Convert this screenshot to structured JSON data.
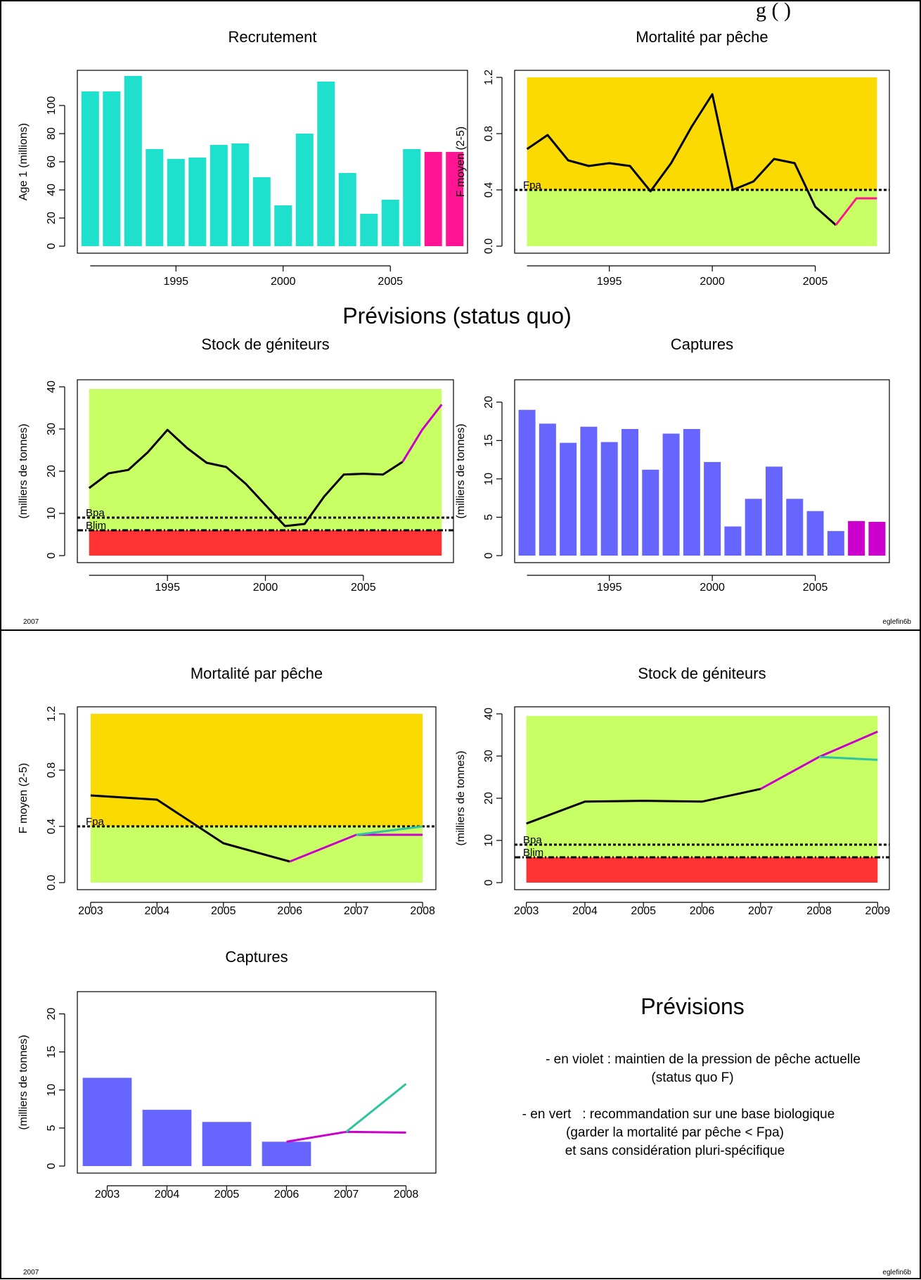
{
  "page": {
    "header_fragment": "g            (     )",
    "footer_top_left": "2007",
    "footer_top_right": "eglefin6b",
    "footer_bottom_left": "2007",
    "footer_bottom_right": "eglefin6b",
    "section_title": "Prévisions (status quo)",
    "legend_title": "Prévisions",
    "legend_lines": [
      "- en violet : maintien de la pression de pêche actuelle",
      "(status quo F)",
      "- en vert   : recommandation sur une base biologique",
      "(garder la mortalité par pêche < Fpa)",
      "et sans considération pluri-spécifique"
    ]
  },
  "colors": {
    "teal_bar": "#1EE0CC",
    "magenta_bar": "#FF1493",
    "blue_bar": "#6666FF",
    "violet": "#CC00CC",
    "pink_line": "#FF1493",
    "green_line": "#2EC4A0",
    "zone_orange": "#FADA00",
    "zone_green": "#C8FF64",
    "zone_red": "#FF3333"
  },
  "chart_data": [
    {
      "id": "recruitment",
      "type": "bar",
      "title": "Recrutement",
      "ylabel": "Age 1 (millions)",
      "ylim": [
        0,
        120
      ],
      "yticks": [
        0,
        20,
        40,
        60,
        80,
        100
      ],
      "xticks": [
        1995,
        2000,
        2005
      ],
      "x": [
        1991,
        1992,
        1993,
        1994,
        1995,
        1996,
        1997,
        1998,
        1999,
        2000,
        2001,
        2002,
        2003,
        2004,
        2005,
        2006,
        2007,
        2008
      ],
      "values": [
        110,
        110,
        121,
        69,
        62,
        63,
        72,
        73,
        49,
        29,
        80,
        117,
        52,
        23,
        33,
        69,
        67,
        67
      ],
      "highlight_from": 2007
    },
    {
      "id": "fishing-mortality",
      "type": "line",
      "title": "Mortalité par pêche",
      "ylabel": "F moyen (2-5)",
      "ylim": [
        0,
        1.2
      ],
      "yticks": [
        0.0,
        0.4,
        0.8,
        1.2
      ],
      "xticks": [
        1995,
        2000,
        2005
      ],
      "reference": {
        "label": "Fpa",
        "value": 0.4
      },
      "series": [
        {
          "x": [
            1991,
            1992,
            1993,
            1994,
            1995,
            1996,
            1997,
            1998,
            1999,
            2000,
            2001,
            2002,
            2003,
            2004,
            2005,
            2006
          ],
          "y": [
            0.69,
            0.79,
            0.61,
            0.57,
            0.59,
            0.57,
            0.39,
            0.59,
            0.85,
            1.08,
            0.4,
            0.46,
            0.62,
            0.59,
            0.28,
            0.15
          ]
        },
        {
          "x": [
            2006,
            2007,
            2008
          ],
          "y": [
            0.15,
            0.34,
            0.34
          ]
        }
      ]
    },
    {
      "id": "spawning-stock",
      "type": "line",
      "title": "Stock de géniteurs",
      "ylabel": "(milliers de tonnes)",
      "ylim": [
        0,
        40
      ],
      "yticks": [
        0,
        10,
        20,
        30,
        40
      ],
      "xticks": [
        1995,
        2000,
        2005
      ],
      "references": [
        {
          "label": "Bpa",
          "value": 9
        },
        {
          "label": "Blim",
          "value": 6
        }
      ],
      "series": [
        {
          "x": [
            1991,
            1992,
            1993,
            1994,
            1995,
            1996,
            1997,
            1998,
            1999,
            2000,
            2001,
            2002,
            2003,
            2004,
            2005,
            2006,
            2007
          ],
          "y": [
            16,
            19.5,
            20.3,
            24.5,
            29.8,
            25.5,
            22,
            21,
            17,
            12,
            7,
            7.5,
            14,
            19.2,
            19.4,
            19.2,
            22.2
          ]
        },
        {
          "x": [
            2007,
            2008,
            2009
          ],
          "y": [
            22.2,
            29.8,
            35.8
          ]
        }
      ]
    },
    {
      "id": "catches",
      "type": "bar",
      "title": "Captures",
      "ylabel": "(milliers de tonnes)",
      "ylim": [
        0,
        22
      ],
      "yticks": [
        0,
        5,
        10,
        15,
        20
      ],
      "xticks": [
        1995,
        2000,
        2005
      ],
      "x": [
        1991,
        1992,
        1993,
        1994,
        1995,
        1996,
        1997,
        1998,
        1999,
        2000,
        2001,
        2002,
        2003,
        2004,
        2005,
        2006,
        2007,
        2008
      ],
      "values": [
        19,
        17.2,
        14.7,
        16.8,
        14.8,
        16.5,
        11.2,
        15.9,
        16.5,
        12.2,
        3.8,
        7.4,
        11.6,
        7.4,
        5.8,
        3.2,
        4.5,
        4.4
      ],
      "highlight_from": 2007
    },
    {
      "id": "fishing-mortality-forecast",
      "type": "line",
      "title": "Mortalité par pêche",
      "ylabel": "F moyen (2-5)",
      "ylim": [
        0,
        1.2
      ],
      "yticks": [
        0.0,
        0.4,
        0.8,
        1.2
      ],
      "xticks": [
        2003,
        2004,
        2005,
        2006,
        2007,
        2008
      ],
      "reference": {
        "label": "Fpa",
        "value": 0.4
      },
      "series": [
        {
          "x": [
            2003,
            2004,
            2005,
            2006
          ],
          "y": [
            0.62,
            0.59,
            0.28,
            0.15
          ]
        },
        {
          "x": [
            2006,
            2007,
            2008
          ],
          "y": [
            0.15,
            0.34,
            0.34
          ]
        },
        {
          "x": [
            2007,
            2008
          ],
          "y": [
            0.34,
            0.4
          ]
        }
      ]
    },
    {
      "id": "spawning-stock-forecast",
      "type": "line",
      "title": "Stock de géniteurs",
      "ylabel": "(milliers de tonnes)",
      "ylim": [
        0,
        40
      ],
      "yticks": [
        0,
        10,
        20,
        30,
        40
      ],
      "xticks": [
        2003,
        2004,
        2005,
        2006,
        2007,
        2008,
        2009
      ],
      "references": [
        {
          "label": "Bpa",
          "value": 9
        },
        {
          "label": "Blim",
          "value": 6
        }
      ],
      "series": [
        {
          "x": [
            2003,
            2004,
            2005,
            2006,
            2007
          ],
          "y": [
            14,
            19.2,
            19.4,
            19.2,
            22.2
          ]
        },
        {
          "x": [
            2007,
            2008,
            2009
          ],
          "y": [
            22.2,
            29.8,
            35.8
          ]
        },
        {
          "x": [
            2008,
            2009
          ],
          "y": [
            29.8,
            29.1
          ]
        }
      ]
    },
    {
      "id": "catches-forecast",
      "type": "bar",
      "title": "Captures",
      "ylabel": "(milliers de tonnes)",
      "ylim": [
        0,
        22
      ],
      "yticks": [
        0,
        5,
        10,
        15,
        20
      ],
      "xticks": [
        2003,
        2004,
        2005,
        2006,
        2007,
        2008
      ],
      "x": [
        2003,
        2004,
        2005,
        2006
      ],
      "values": [
        11.6,
        7.4,
        5.8,
        3.2
      ],
      "series": [
        {
          "x": [
            2006,
            2007,
            2008
          ],
          "y": [
            3.2,
            4.5,
            4.4
          ]
        },
        {
          "x": [
            2007,
            2008
          ],
          "y": [
            4.5,
            10.8
          ]
        }
      ]
    }
  ]
}
